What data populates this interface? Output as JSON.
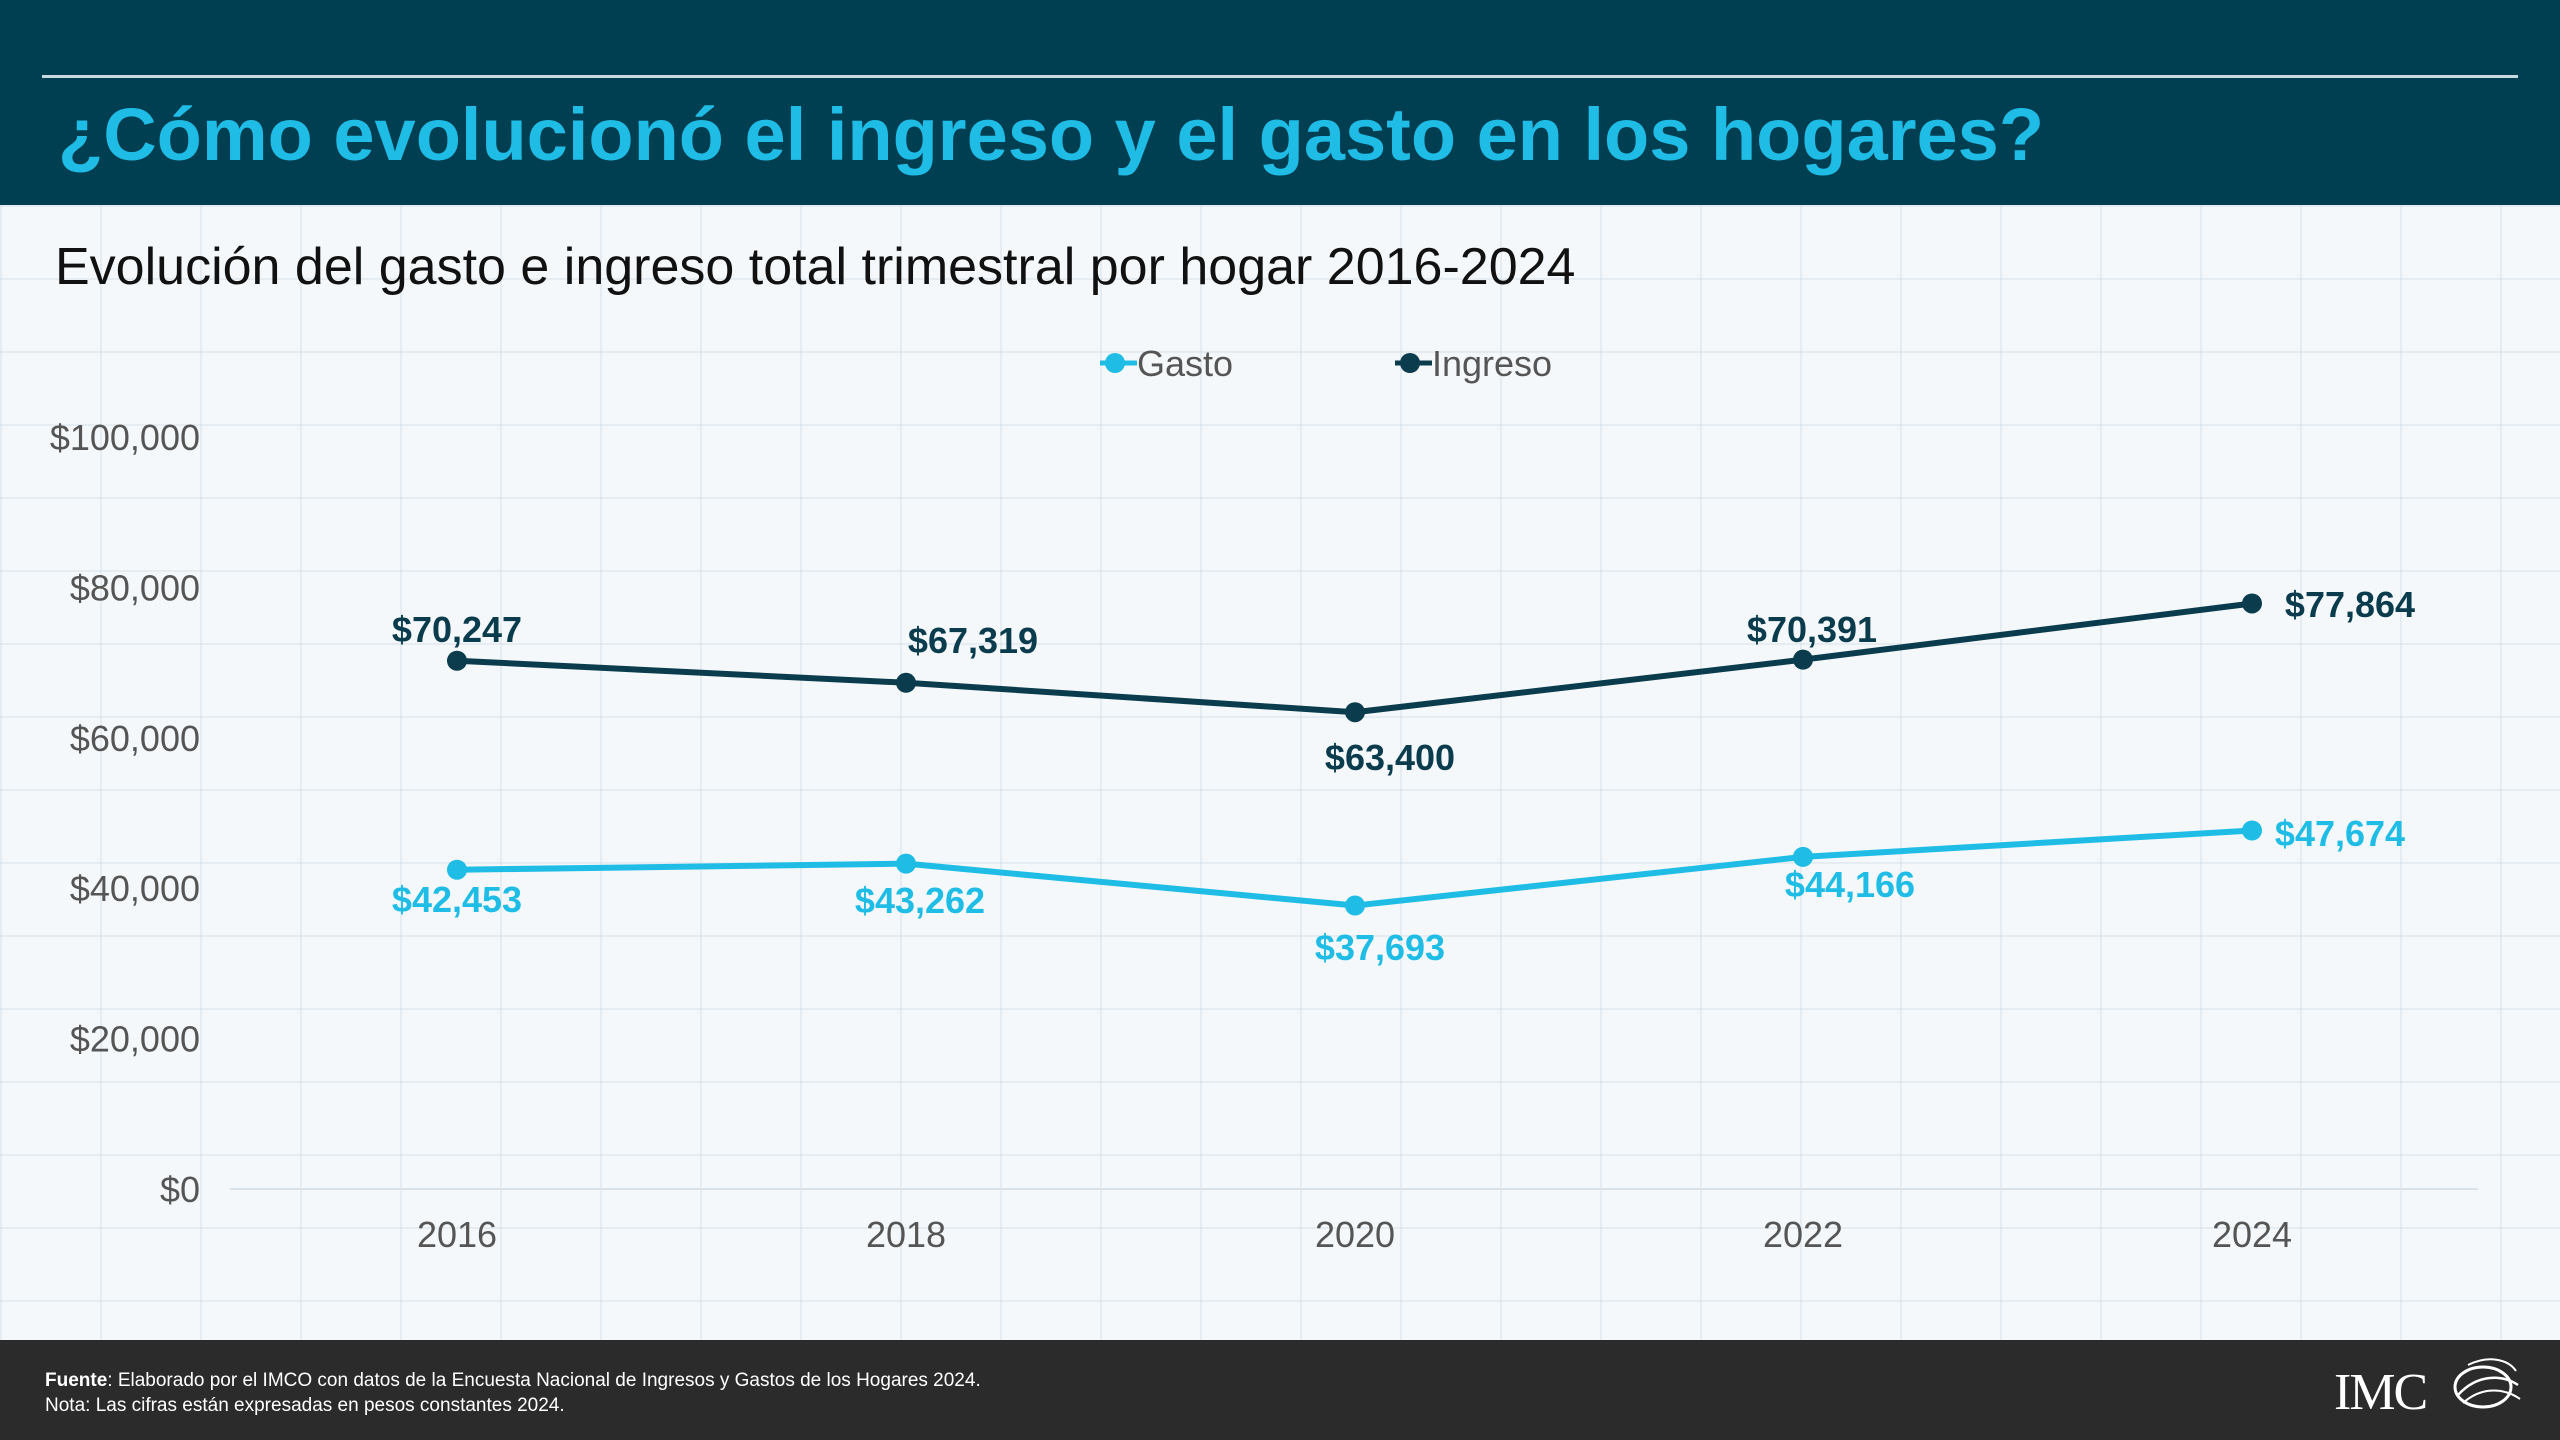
{
  "header": {
    "title": "¿Cómo evolucionó el ingreso y el gasto en los hogares?"
  },
  "chart_data": {
    "type": "line",
    "title": "Evolución del gasto e ingreso total trimestral por hogar 2016-2024",
    "categories": [
      "2016",
      "2018",
      "2020",
      "2022",
      "2024"
    ],
    "ylim": [
      0,
      100000
    ],
    "yticks": [
      "$0",
      "$20,000",
      "$40,000",
      "$60,000",
      "$80,000",
      "$100,000"
    ],
    "ytick_values": [
      0,
      20000,
      40000,
      60000,
      80000,
      100000
    ],
    "grid": false,
    "legend_position": "top-center",
    "series": [
      {
        "name": "Gasto",
        "color": "#1fbde6",
        "values": [
          42453,
          43262,
          37693,
          44166,
          47674
        ],
        "labels": [
          "$42,453",
          "$43,262",
          "$37,693",
          "$44,166",
          "$47,674"
        ]
      },
      {
        "name": "Ingreso",
        "color": "#0b3c4d",
        "values": [
          70247,
          67319,
          63400,
          70391,
          77864
        ],
        "labels": [
          "$70,247",
          "$67,319",
          "$63,400",
          "$70,391",
          "$77,864"
        ]
      }
    ]
  },
  "footer": {
    "source_label": "Fuente",
    "source_text": ": Elaborado por el IMCO con datos de la Encuesta Nacional de Ingresos y Gastos de los Hogares 2024.",
    "note": "Nota: Las cifras están expresadas en pesos constantes 2024.",
    "logo_text": "IMCO"
  }
}
